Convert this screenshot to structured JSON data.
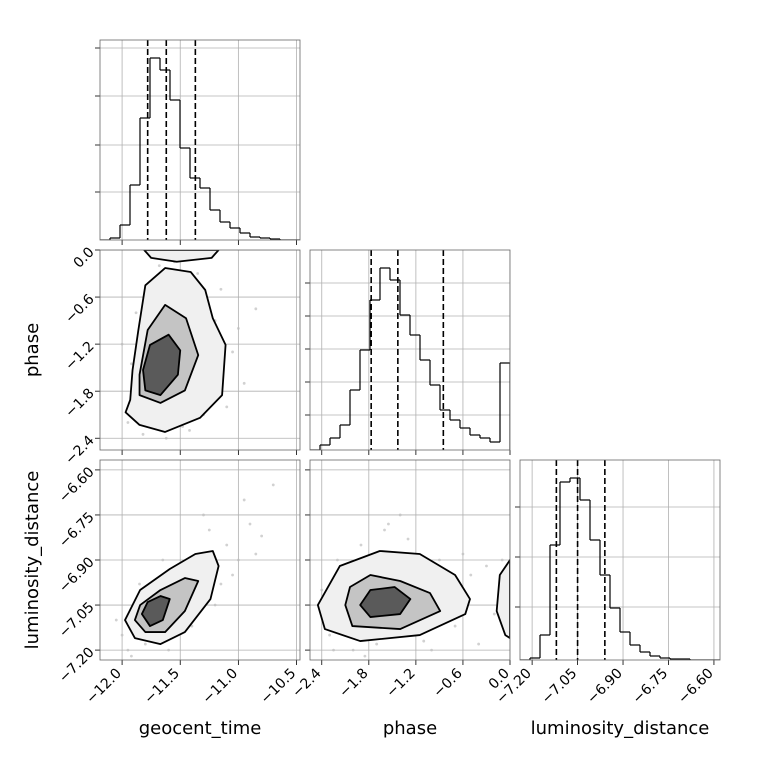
{
  "chart_data": [
    {
      "type": "histogram",
      "color": "#000000",
      "grid": true,
      "bins": [
        -12.19,
        -12.104,
        -12.018,
        -11.932,
        -11.846,
        -11.76,
        -11.674,
        -11.588,
        -11.502,
        -11.416,
        -11.33,
        -11.244,
        -11.158,
        -11.072,
        -10.986,
        -10.9,
        -10.814,
        -10.728,
        -10.642,
        -10.556,
        -10.47
      ],
      "counts": [
        0,
        2,
        15,
        55,
        122,
        182,
        170,
        140,
        92,
        62,
        52,
        30,
        18,
        12,
        7,
        3,
        2,
        1,
        0,
        0
      ],
      "quantiles": [
        -11.78,
        -11.62,
        -11.37
      ],
      "xlim": [
        -12.19,
        -10.47
      ],
      "xticks": [
        -12.0,
        -11.5,
        -11.0,
        -10.5
      ],
      "ylim": [
        0,
        200
      ],
      "yticks": [
        48,
        95,
        144,
        192
      ]
    },
    {
      "type": "contour",
      "grid": true,
      "point_color": "#bdbdbd",
      "line_color": "#000000",
      "points": {
        "x": [
          -11.95,
          -11.9,
          -11.82,
          -11.7,
          -11.55,
          -11.4,
          -11.3,
          -11.2,
          -11.05,
          -10.95,
          -11.75,
          -11.62,
          -11.48,
          -11.35,
          -11.15,
          -12.0,
          -11.88,
          -11.68,
          -11.5,
          -11.25,
          -11.1,
          -11.0,
          -11.8,
          -11.6,
          -11.42,
          -11.3,
          -10.85,
          -11.92,
          -11.7,
          -11.45
        ],
        "y": [
          -2.2,
          -1.6,
          -2.35,
          -0.4,
          -0.15,
          -0.6,
          -2.1,
          -0.9,
          -1.3,
          -1.7,
          -0.7,
          -2.4,
          -2.25,
          -0.3,
          -0.5,
          -1.2,
          -0.8,
          -0.2,
          -0.9,
          -1.85,
          -2.0,
          -1.0,
          -1.9,
          -0.5,
          -2.3,
          -1.5,
          -0.75,
          -1.45,
          -2.15,
          -0.05
        ]
      },
      "contours": [
        {
          "fill": "#f0f0f0",
          "x": [
            -11.93,
            -11.97,
            -11.85,
            -11.63,
            -11.33,
            -11.14,
            -11.11,
            -11.22,
            -11.285,
            -11.41,
            -11.63,
            -11.8,
            -11.86,
            -11.91
          ],
          "y": [
            -1.91,
            -2.07,
            -2.23,
            -2.32,
            -2.14,
            -1.85,
            -1.21,
            -0.87,
            -0.51,
            -0.28,
            -0.23,
            -0.45,
            -1.02,
            -1.53
          ]
        },
        {
          "fill": "#c4c4c4",
          "x": [
            -11.85,
            -11.85,
            -11.67,
            -11.46,
            -11.345,
            -11.45,
            -11.63,
            -11.78
          ],
          "y": [
            -1.59,
            -1.85,
            -1.95,
            -1.79,
            -1.34,
            -0.87,
            -0.7,
            -1.02
          ]
        },
        {
          "fill": "#5a5a5a",
          "x": [
            -11.82,
            -11.8,
            -11.67,
            -11.52,
            -11.5,
            -11.6,
            -11.76
          ],
          "y": [
            -1.53,
            -1.79,
            -1.85,
            -1.59,
            -1.28,
            -1.08,
            -1.21
          ]
        },
        {
          "fill": "#f0f0f0",
          "x": [
            -11.81,
            -11.75,
            -11.53,
            -11.23,
            -11.17
          ],
          "y": [
            0,
            -0.1,
            -0.15,
            -0.1,
            0
          ]
        }
      ],
      "xlim": [
        -12.19,
        -10.47
      ],
      "xticks": [
        -12.0,
        -11.5,
        -11.0,
        -10.5
      ],
      "ylim": [
        -2.55,
        0.0
      ],
      "ylabel": "phase",
      "yticks": [
        {
          "value": -2.4,
          "label": "−2.4"
        },
        {
          "value": -1.8,
          "label": "−1.8"
        },
        {
          "value": -1.2,
          "label": "−1.2"
        },
        {
          "value": -0.6,
          "label": "−0.6"
        },
        {
          "value": 0.0,
          "label": "0.0"
        }
      ]
    },
    {
      "type": "histogram",
      "color": "#000000",
      "grid": true,
      "bins": [
        -2.55,
        -2.4225,
        -2.295,
        -2.1675,
        -2.04,
        -1.9125,
        -1.785,
        -1.6575,
        -1.53,
        -1.4025,
        -1.275,
        -1.1475,
        -1.02,
        -0.8925,
        -0.765,
        -0.6375,
        -0.51,
        -0.3825,
        -0.255,
        -0.1275,
        0.0
      ],
      "counts": [
        0,
        5,
        12,
        25,
        60,
        100,
        150,
        182,
        170,
        135,
        115,
        90,
        65,
        40,
        30,
        22,
        15,
        12,
        8,
        87
      ],
      "quantiles": [
        -1.77,
        -1.43,
        -0.85
      ],
      "xlim": [
        -2.55,
        0.0
      ],
      "xticks": [
        -2.4,
        -1.8,
        -1.2,
        -0.6,
        0.0
      ],
      "ylim": [
        0,
        200
      ],
      "yticks": [
        35,
        68,
        101,
        134,
        167
      ]
    },
    {
      "type": "contour",
      "grid": true,
      "point_color": "#bdbdbd",
      "line_color": "#000000",
      "points": {
        "x": [
          -12.0,
          -11.95,
          -11.9,
          -11.8,
          -11.7,
          -11.6,
          -11.5,
          -11.4,
          -11.3,
          -11.2,
          -11.1,
          -11.0,
          -10.9,
          -10.8,
          -11.85,
          -11.65,
          -11.45,
          -11.25,
          -11.05,
          -10.95,
          -11.75,
          -11.55,
          -11.35,
          -11.15,
          -10.85,
          -12.05,
          -11.92,
          -11.72,
          -11.3,
          -10.7
        ],
        "y": [
          -7.15,
          -7.2,
          -7.05,
          -7.18,
          -6.98,
          -7.2,
          -6.95,
          -7.12,
          -6.88,
          -7.05,
          -6.85,
          -6.9,
          -6.78,
          -6.82,
          -6.98,
          -6.9,
          -7.08,
          -6.8,
          -6.95,
          -6.7,
          -7.1,
          -7.15,
          -6.92,
          -6.98,
          -6.88,
          -7.1,
          -7.22,
          -7.02,
          -6.75,
          -6.65
        ]
      },
      "contours": [
        {
          "fill": "#f0f0f0",
          "x": [
            -11.975,
            -11.89,
            -11.67,
            -11.46,
            -11.24,
            -11.17,
            -11.22,
            -11.37,
            -11.59,
            -11.845
          ],
          "y": [
            -7.1,
            -7.16,
            -7.18,
            -7.14,
            -7.03,
            -6.92,
            -6.87,
            -6.88,
            -6.93,
            -7.0
          ]
        },
        {
          "fill": "#c4c4c4",
          "x": [
            -11.89,
            -11.8,
            -11.63,
            -11.46,
            -11.345,
            -11.46,
            -11.67,
            -11.845
          ],
          "y": [
            -7.1,
            -7.14,
            -7.14,
            -7.07,
            -6.97,
            -6.96,
            -7.0,
            -7.05
          ]
        },
        {
          "fill": "#5a5a5a",
          "x": [
            -11.83,
            -11.76,
            -11.65,
            -11.59,
            -11.67,
            -11.78
          ],
          "y": [
            -7.08,
            -7.12,
            -7.1,
            -7.03,
            -7.02,
            -7.04
          ]
        }
      ],
      "xlim": [
        -12.19,
        -10.47
      ],
      "xlabel": "geocent_time",
      "xticks": [
        {
          "value": -12.0,
          "label": "−12.0"
        },
        {
          "value": -11.5,
          "label": "−11.5"
        },
        {
          "value": -11.0,
          "label": "−11.0"
        },
        {
          "value": -10.5,
          "label": "−10.5"
        }
      ],
      "ylim": [
        -7.233,
        -6.567
      ],
      "ylabel": "luminosity_distance",
      "yticks": [
        {
          "value": -7.2,
          "label": "−7.20"
        },
        {
          "value": -7.05,
          "label": "−7.05"
        },
        {
          "value": -6.9,
          "label": "−6.90"
        },
        {
          "value": -6.75,
          "label": "−6.75"
        },
        {
          "value": -6.6,
          "label": "−6.60"
        }
      ]
    },
    {
      "type": "contour",
      "grid": true,
      "point_color": "#bdbdbd",
      "line_color": "#000000",
      "points": {
        "x": [
          -2.4,
          -2.3,
          -2.2,
          -2.0,
          -1.9,
          -1.7,
          -1.6,
          -1.5,
          -1.3,
          -1.1,
          -0.9,
          -0.7,
          -0.5,
          -0.4,
          -0.2,
          -2.35,
          -2.1,
          -1.85,
          -1.55,
          -1.25,
          -0.95,
          -0.6,
          -0.3,
          -2.25,
          -1.95,
          -1.4,
          -1.0,
          -0.8,
          -1.75,
          -0.1
        ],
        "y": [
          -7.0,
          -7.15,
          -6.9,
          -7.2,
          -6.85,
          -7.18,
          -6.8,
          -7.1,
          -6.83,
          -7.17,
          -6.9,
          -7.12,
          -6.95,
          -7.18,
          -7.08,
          -7.1,
          -6.95,
          -7.22,
          -6.78,
          -6.92,
          -7.05,
          -6.88,
          -6.92,
          -7.2,
          -7.08,
          -6.75,
          -7.2,
          -7.02,
          -6.95,
          -6.9
        ]
      },
      "contours": [
        {
          "fill": "#f0f0f0",
          "x": [
            -2.45,
            -2.36,
            -1.91,
            -1.15,
            -0.57,
            -0.51,
            -0.7,
            -1.15,
            -1.66,
            -2.17
          ],
          "y": [
            -7.05,
            -7.13,
            -7.17,
            -7.15,
            -7.08,
            -7.03,
            -6.95,
            -6.88,
            -6.87,
            -6.92
          ]
        },
        {
          "fill": "#c4c4c4",
          "x": [
            -2.1,
            -2.01,
            -1.4,
            -0.89,
            -1.02,
            -1.4,
            -1.78,
            -2.04
          ],
          "y": [
            -7.05,
            -7.12,
            -7.13,
            -7.07,
            -7.01,
            -6.97,
            -6.95,
            -6.99
          ]
        },
        {
          "fill": "#5a5a5a",
          "x": [
            -1.91,
            -1.78,
            -1.4,
            -1.27,
            -1.47,
            -1.78
          ],
          "y": [
            -7.05,
            -7.09,
            -7.08,
            -7.03,
            -6.99,
            -7.0
          ]
        },
        {
          "fill": "#f0f0f0",
          "x": [
            0.0,
            -0.13,
            -0.17,
            -0.06,
            0.0
          ],
          "y": [
            -6.9,
            -6.95,
            -7.07,
            -7.15,
            -7.16
          ]
        }
      ],
      "xlim": [
        -2.55,
        0.0
      ],
      "xlabel": "phase",
      "xticks": [
        {
          "value": -2.4,
          "label": "−2.4"
        },
        {
          "value": -1.8,
          "label": "−1.8"
        },
        {
          "value": -1.2,
          "label": "−1.2"
        },
        {
          "value": -0.6,
          "label": "−0.6"
        },
        {
          "value": 0.0,
          "label": "0.0"
        }
      ],
      "ylim": [
        -7.233,
        -6.567
      ],
      "yticks": [
        -7.2,
        -7.05,
        -6.9,
        -6.75,
        -6.6
      ]
    },
    {
      "type": "histogram",
      "color": "#000000",
      "grid": true,
      "bins": [
        -7.24,
        -7.207,
        -7.174,
        -7.141,
        -7.108,
        -7.075,
        -7.042,
        -7.009,
        -6.976,
        -6.943,
        -6.91,
        -6.877,
        -6.844,
        -6.811,
        -6.778,
        -6.745,
        -6.712,
        -6.679,
        -6.646,
        -6.613,
        -6.58
      ],
      "counts": [
        0,
        2,
        25,
        115,
        178,
        182,
        160,
        120,
        85,
        52,
        28,
        15,
        8,
        4,
        2,
        1,
        1,
        0,
        0,
        0
      ],
      "quantiles": [
        -7.12,
        -7.05,
        -6.96
      ],
      "xlim": [
        -7.24,
        -6.58
      ],
      "xlabel": "luminosity_distance",
      "xticks": [
        {
          "value": -7.2,
          "label": "−7.20"
        },
        {
          "value": -7.05,
          "label": "−7.05"
        },
        {
          "value": -6.9,
          "label": "−6.90"
        },
        {
          "value": -6.75,
          "label": "−6.75"
        },
        {
          "value": -6.6,
          "label": "−6.60"
        }
      ],
      "ylim": [
        0,
        200
      ],
      "yticks": [
        53,
        103,
        153
      ]
    }
  ]
}
